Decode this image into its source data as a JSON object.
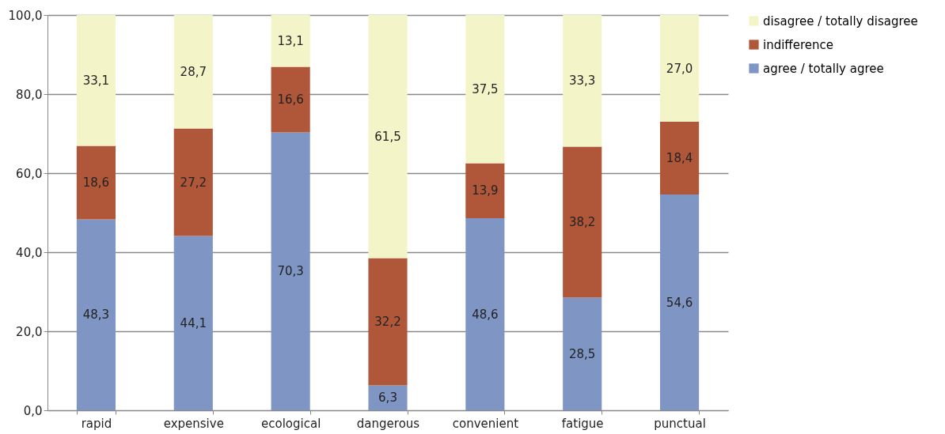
{
  "chart_data": {
    "type": "bar",
    "stacked": true,
    "categories": [
      "rapid",
      "expensive",
      "ecological",
      "dangerous",
      "convenient",
      "fatigue",
      "punctual"
    ],
    "series": [
      {
        "name": "agree / totally agree",
        "color": "#7f96c4",
        "values": [
          48.3,
          44.1,
          70.3,
          6.3,
          48.6,
          28.5,
          54.6
        ],
        "value_labels": [
          "48,3",
          "44,1",
          "70,3",
          "6,3",
          "48,6",
          "28,5",
          "54,6"
        ]
      },
      {
        "name": "indifference",
        "color": "#b0573a",
        "values": [
          18.6,
          27.2,
          16.6,
          32.2,
          13.9,
          38.2,
          18.4
        ],
        "value_labels": [
          "18,6",
          "27,2",
          "16,6",
          "32,2",
          "13,9",
          "38,2",
          "18,4"
        ]
      },
      {
        "name": "disagree / totally disagree",
        "color": "#f3f5c9",
        "values": [
          33.1,
          28.7,
          13.1,
          61.5,
          37.5,
          33.3,
          27.0
        ],
        "value_labels": [
          "33,1",
          "28,7",
          "13,1",
          "61,5",
          "37,5",
          "33,3",
          "27,0"
        ]
      }
    ],
    "ylim": [
      0,
      100
    ],
    "yticks": [
      {
        "value": 0,
        "label": "0,0"
      },
      {
        "value": 20,
        "label": "20,0"
      },
      {
        "value": 40,
        "label": "40,0"
      },
      {
        "value": 60,
        "label": "60,0"
      },
      {
        "value": 80,
        "label": "80,0"
      },
      {
        "value": 100,
        "label": "100,0"
      }
    ],
    "grid": "y",
    "legend": "right"
  }
}
